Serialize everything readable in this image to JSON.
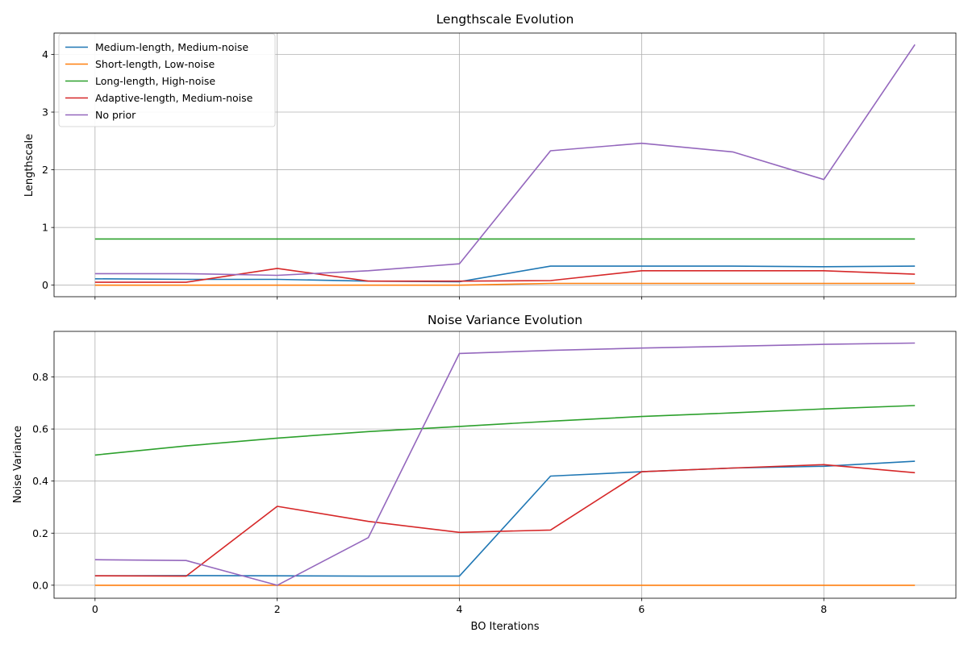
{
  "chart_data": [
    {
      "type": "line",
      "title": "Lengthscale Evolution",
      "xlabel": "",
      "ylabel": "Lengthscale",
      "x": [
        0,
        1,
        2,
        3,
        4,
        5,
        6,
        7,
        8,
        9
      ],
      "xlim": [
        -0.45,
        9.45
      ],
      "ylim": [
        -0.2,
        4.37
      ],
      "xticks": [
        0,
        2,
        4,
        6,
        8
      ],
      "yticks": [
        0,
        1,
        2,
        3,
        4
      ],
      "grid": true,
      "legend_position": "upper-left",
      "series": [
        {
          "name": "Medium-length, Medium-noise",
          "color": "#1f77b4",
          "values": [
            0.11,
            0.1,
            0.1,
            0.07,
            0.06,
            0.33,
            0.33,
            0.33,
            0.32,
            0.33
          ]
        },
        {
          "name": "Short-length, Low-noise",
          "color": "#ff7f0e",
          "values": [
            0.0,
            0.0,
            0.0,
            0.0,
            0.0,
            0.03,
            0.03,
            0.03,
            0.03,
            0.03
          ]
        },
        {
          "name": "Long-length, High-noise",
          "color": "#2ca02c",
          "values": [
            0.8,
            0.8,
            0.8,
            0.8,
            0.8,
            0.8,
            0.8,
            0.8,
            0.8,
            0.8
          ]
        },
        {
          "name": "Adaptive-length, Medium-noise",
          "color": "#d62728",
          "values": [
            0.05,
            0.05,
            0.29,
            0.07,
            0.07,
            0.08,
            0.25,
            0.25,
            0.25,
            0.19
          ]
        },
        {
          "name": "No prior",
          "color": "#9467bd",
          "values": [
            0.2,
            0.2,
            0.17,
            0.25,
            0.37,
            2.33,
            2.46,
            2.31,
            1.83,
            4.17
          ]
        }
      ]
    },
    {
      "type": "line",
      "title": "Noise Variance Evolution",
      "xlabel": "BO Iterations",
      "ylabel": "Noise Variance",
      "x": [
        0,
        1,
        2,
        3,
        4,
        5,
        6,
        7,
        8,
        9
      ],
      "xlim": [
        -0.45,
        9.45
      ],
      "ylim": [
        -0.05,
        0.975
      ],
      "xticks": [
        0,
        2,
        4,
        6,
        8
      ],
      "yticks": [
        0.0,
        0.2,
        0.4,
        0.6,
        0.8
      ],
      "ytick_labels": [
        "0.0",
        "0.2",
        "0.4",
        "0.6",
        "0.8"
      ],
      "grid": true,
      "series": [
        {
          "name": "Medium-length, Medium-noise",
          "color": "#1f77b4",
          "values": [
            0.036,
            0.037,
            0.036,
            0.035,
            0.035,
            0.419,
            0.436,
            0.45,
            0.457,
            0.476
          ]
        },
        {
          "name": "Short-length, Low-noise",
          "color": "#ff7f0e",
          "values": [
            0.0,
            0.0,
            0.0,
            0.0,
            0.0,
            0.0,
            0.0,
            0.0,
            0.0,
            0.0
          ]
        },
        {
          "name": "Long-length, High-noise",
          "color": "#2ca02c",
          "values": [
            0.5,
            0.535,
            0.565,
            0.59,
            0.61,
            0.63,
            0.648,
            0.662,
            0.677,
            0.69
          ]
        },
        {
          "name": "Adaptive-length, Medium-noise",
          "color": "#d62728",
          "values": [
            0.036,
            0.035,
            0.303,
            0.245,
            0.203,
            0.212,
            0.436,
            0.45,
            0.463,
            0.432
          ]
        },
        {
          "name": "No prior",
          "color": "#9467bd",
          "values": [
            0.098,
            0.095,
            0.0,
            0.183,
            0.89,
            0.902,
            0.911,
            0.918,
            0.925,
            0.93
          ]
        }
      ]
    }
  ]
}
